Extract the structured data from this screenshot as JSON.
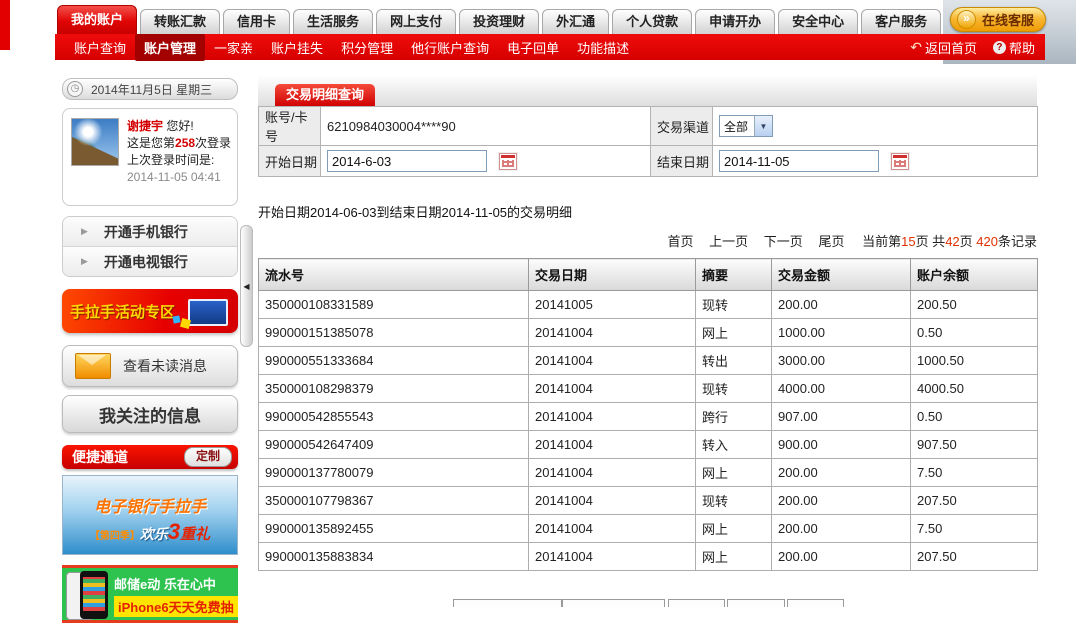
{
  "icons": {
    "clock": "◷",
    "chevron_right": "▶",
    "chevron_down": "▼",
    "back_arrow": "↶",
    "help_mark": "?",
    "double_chevron": "»",
    "collapse_arrow": "◀"
  },
  "colors": {
    "accent_red": "#e30000",
    "subnav_active_red": "#a30000",
    "gold_button": "#f0a500",
    "number_red": "#e03000",
    "ad_green": "#2ec24e",
    "ad_yellow": "#ffe400"
  },
  "header": {
    "tabs": [
      {
        "label": "我的账户",
        "active": true
      },
      {
        "label": "转账汇款",
        "active": false
      },
      {
        "label": "信用卡",
        "active": false
      },
      {
        "label": "生活服务",
        "active": false
      },
      {
        "label": "网上支付",
        "active": false
      },
      {
        "label": "投资理财",
        "active": false
      },
      {
        "label": "外汇通",
        "active": false
      },
      {
        "label": "个人贷款",
        "active": false
      },
      {
        "label": "申请开办",
        "active": false
      },
      {
        "label": "安全中心",
        "active": false
      },
      {
        "label": "客户服务",
        "active": false
      }
    ],
    "online_service": "在线客服",
    "subnav": {
      "items": [
        {
          "label": "账户查询",
          "active": false
        },
        {
          "label": "账户管理",
          "active": true
        },
        {
          "label": "一家亲",
          "active": false
        },
        {
          "label": "账户挂失",
          "active": false
        },
        {
          "label": "积分管理",
          "active": false
        },
        {
          "label": "他行账户查询",
          "active": false
        },
        {
          "label": "电子回单",
          "active": false
        },
        {
          "label": "功能描述",
          "active": false
        }
      ],
      "home": "返回首页",
      "help": "帮助"
    }
  },
  "sidebar": {
    "date": "2014年11月5日 星期三",
    "user": {
      "name": "谢捷宇",
      "greeting": "您好!",
      "login_count_prefix": "这是您第",
      "login_count": "258",
      "login_count_suffix": "次登录",
      "last_login_label": "上次登录时间是:",
      "last_login_time": "2014-11-05 04:41"
    },
    "menu": [
      "开通手机银行",
      "开通电视银行"
    ],
    "promo_banner": "手拉手活动专区",
    "unread_button": "查看未读消息",
    "info_button": "我关注的信息",
    "quick_bar": {
      "label": "便捷通道",
      "button": "定制"
    },
    "ad1": {
      "line1": "电子银行手拉手",
      "line2_prefix": "【第四季】",
      "line2_mid": "欢乐",
      "line2_num": "3",
      "line2_suffix": "重礼"
    },
    "ad2": {
      "line1": "邮储e动 乐在心中",
      "line2": "iPhone6天天免费抽"
    }
  },
  "main": {
    "panel_tab": "交易明细查询",
    "form": {
      "account_label": "账号/卡号",
      "account_value": "6210984030004****90",
      "channel_label": "交易渠道",
      "channel_value": "全部",
      "start_label": "开始日期",
      "start_value": "2014-6-03",
      "end_label": "结束日期",
      "end_value": "2014-11-05"
    },
    "summary": "开始日期2014-06-03到结束日期2014-11-05的交易明细",
    "pagination": {
      "first": "首页",
      "prev": "上一页",
      "next": "下一页",
      "last": "尾页",
      "current_prefix": "当前第",
      "current_page": "15",
      "seg1": "页 共",
      "total_pages": "42",
      "seg2": "页 ",
      "total_records": "420",
      "seg3": "条记录"
    },
    "table": {
      "headers": [
        "流水号",
        "交易日期",
        "摘要",
        "交易金额",
        "账户余额"
      ],
      "rows": [
        [
          "350000108331589",
          "20141005",
          "现转",
          "200.00",
          "200.50"
        ],
        [
          "990000151385078",
          "20141004",
          "网上",
          "1000.00",
          "0.50"
        ],
        [
          "990000551333684",
          "20141004",
          "转出",
          "3000.00",
          "1000.50"
        ],
        [
          "350000108298379",
          "20141004",
          "现转",
          "4000.00",
          "4000.50"
        ],
        [
          "990000542855543",
          "20141004",
          "跨行",
          "907.00",
          "0.50"
        ],
        [
          "990000542647409",
          "20141004",
          "转入",
          "900.00",
          "907.50"
        ],
        [
          "990000137780079",
          "20141004",
          "网上",
          "200.00",
          "7.50"
        ],
        [
          "350000107798367",
          "20141004",
          "现转",
          "200.00",
          "207.50"
        ],
        [
          "990000135892455",
          "20141004",
          "网上",
          "200.00",
          "7.50"
        ],
        [
          "990000135883834",
          "20141004",
          "网上",
          "200.00",
          "207.50"
        ]
      ]
    }
  }
}
